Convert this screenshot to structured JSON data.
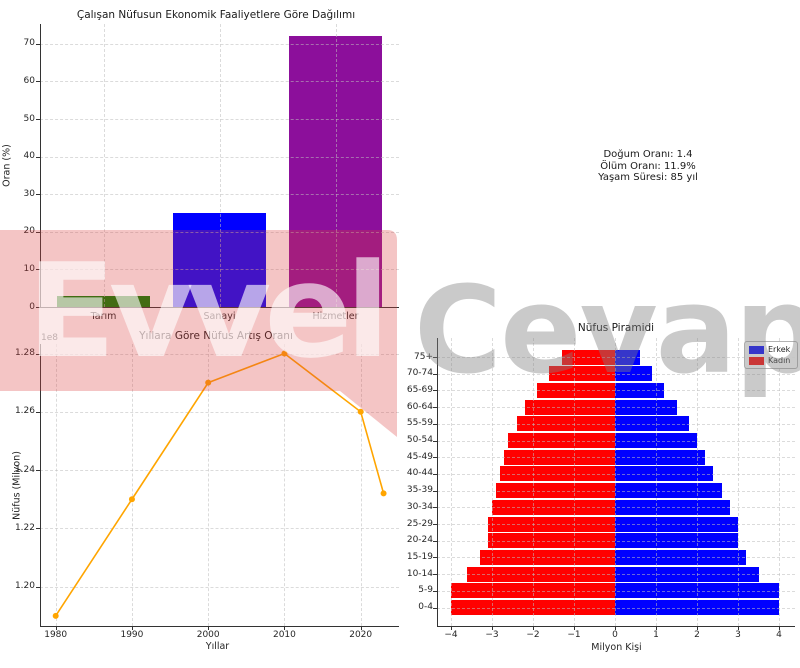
{
  "figure": {
    "background": "#ffffff"
  },
  "watermark": {
    "bubble_text": "Evvel",
    "side_text": "Cevap",
    "bubble_color": "rgba(217,62,62,0.30)",
    "side_color": "rgba(128,128,128,0.42)"
  },
  "info_panel": {
    "lines": [
      "Doğum Oranı: 1.4",
      "Ölüm Oranı: 11.9%",
      "Yaşam Süresi: 85 yıl"
    ]
  },
  "chart_data": [
    {
      "id": "economic-activities",
      "type": "bar",
      "title": "Çalışan Nüfusun Ekonomik Faaliyetlere Göre Dağılımı",
      "xlabel": "",
      "ylabel": "Oran (%)",
      "categories": [
        "Tarım",
        "Sanayi",
        "Hizmetler"
      ],
      "values": [
        3,
        25,
        72
      ],
      "colors": [
        "#008000",
        "#0000ff",
        "#8c0f9b"
      ],
      "ylim": [
        0,
        75
      ],
      "yticks": [
        0,
        10,
        20,
        30,
        40,
        50,
        60,
        70
      ],
      "grid": true
    },
    {
      "id": "population-growth",
      "type": "line",
      "title": "Yıllara Göre Nüfus Artış Oranı",
      "xlabel": "Yıllar",
      "ylabel": "Nüfus (Milyon)",
      "offset_text": "1e8",
      "x": [
        1980,
        1990,
        2000,
        2010,
        2020,
        2023
      ],
      "y_e8": [
        1.19,
        1.23,
        1.27,
        1.28,
        1.26,
        1.232
      ],
      "color": "#ffa500",
      "xticks": [
        1980,
        1990,
        2000,
        2010,
        2020
      ],
      "ytick_values_e8": [
        1.2,
        1.22,
        1.24,
        1.26,
        1.28
      ],
      "grid": true
    },
    {
      "id": "population-pyramid",
      "type": "pyramid-bar",
      "title": "Nüfus Piramidi",
      "xlabel": "Milyon Kişi",
      "ylabel": "",
      "age_groups": [
        "0-4",
        "5-9",
        "10-14",
        "15-19",
        "20-24",
        "25-29",
        "30-34",
        "35-39",
        "40-44",
        "45-49",
        "50-54",
        "55-59",
        "60-64",
        "65-69",
        "70-74",
        "75+"
      ],
      "series": [
        {
          "name": "Erkek",
          "color": "#0000ff",
          "values": [
            4.0,
            4.0,
            3.5,
            3.2,
            3.0,
            3.0,
            2.8,
            2.6,
            2.4,
            2.2,
            2.0,
            1.8,
            1.5,
            1.2,
            0.9,
            0.6
          ]
        },
        {
          "name": "Kadın",
          "color": "#ff0000",
          "values": [
            4.0,
            4.0,
            3.6,
            3.3,
            3.1,
            3.1,
            3.0,
            2.9,
            2.8,
            2.7,
            2.6,
            2.4,
            2.2,
            1.9,
            1.6,
            1.3
          ]
        }
      ],
      "xticks": [
        -4,
        -3,
        -2,
        -1,
        0,
        1,
        2,
        3,
        4
      ],
      "legend_position": "upper right",
      "grid": true
    }
  ]
}
